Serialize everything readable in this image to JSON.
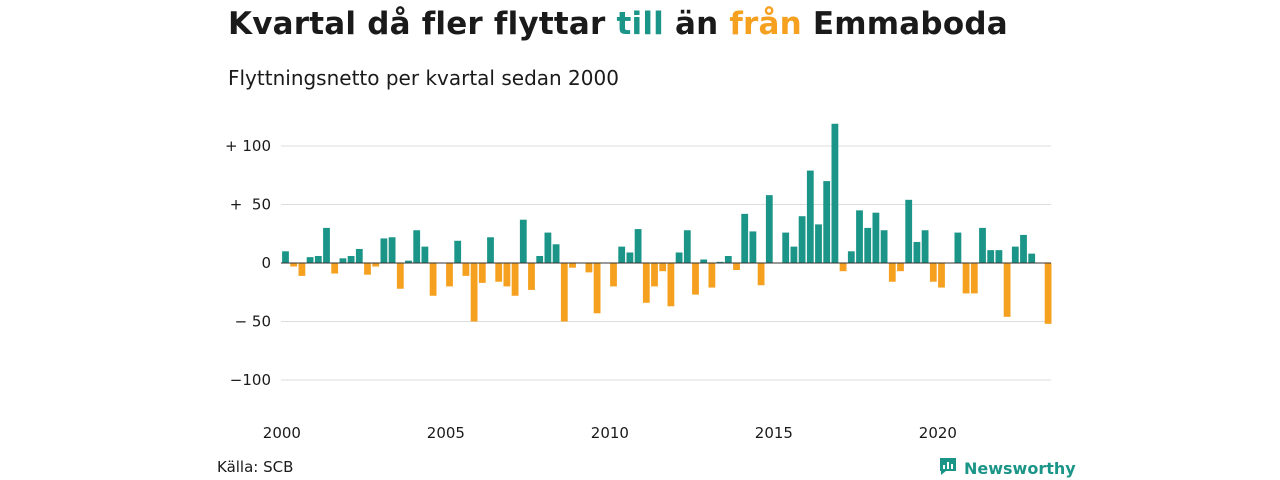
{
  "header": {
    "title_pre": "Kvartal då fler flyttar ",
    "title_till": "till",
    "title_mid": " än ",
    "title_fran": "från",
    "title_post": " Emmaboda",
    "subtitle": "Flyttningsnetto per kvartal sedan 2000"
  },
  "footer": {
    "source": "Källa: SCB",
    "brand": "Newsworthy",
    "brand_icon": "newsworthy-logo-icon"
  },
  "colors": {
    "positive": "#1b9588",
    "negative": "#f5a01f",
    "grid": "#dddddd"
  },
  "chart_data": {
    "type": "bar",
    "title": "Kvartal då fler flyttar till än från Emmaboda",
    "subtitle": "Flyttningsnetto per kvartal sedan 2000",
    "x_start": "2000 Q1",
    "x_ticks": [
      "2000",
      "2005",
      "2010",
      "2015",
      "2020"
    ],
    "y_ticks": [
      {
        "value": 100,
        "label": "+ 100"
      },
      {
        "value": 50,
        "label": "+  50"
      },
      {
        "value": 0,
        "label": "0"
      },
      {
        "value": -50,
        "label": "− 50"
      },
      {
        "value": -100,
        "label": "−100"
      }
    ],
    "ylim": [
      -110,
      120
    ],
    "grid": true,
    "values": [
      10,
      -3,
      -11,
      5,
      6,
      30,
      -9,
      4,
      6,
      12,
      -10,
      -3,
      21,
      22,
      -22,
      2,
      28,
      14,
      -28,
      0,
      -20,
      19,
      -11,
      -50,
      -17,
      22,
      -16,
      -20,
      -28,
      37,
      -23,
      6,
      26,
      16,
      -50,
      -4,
      0,
      -8,
      -43,
      0,
      -20,
      14,
      9,
      29,
      -34,
      -20,
      -7,
      -37,
      9,
      28,
      -27,
      3,
      -21,
      1,
      6,
      -6,
      42,
      27,
      -19,
      58,
      0,
      26,
      14,
      40,
      79,
      33,
      70,
      119,
      -7,
      10,
      45,
      30,
      43,
      28,
      -16,
      -7,
      54,
      18,
      28,
      -16,
      -21,
      0,
      26,
      -26,
      -26,
      30,
      11,
      11,
      -46,
      14,
      24,
      8,
      0,
      -52
    ]
  }
}
